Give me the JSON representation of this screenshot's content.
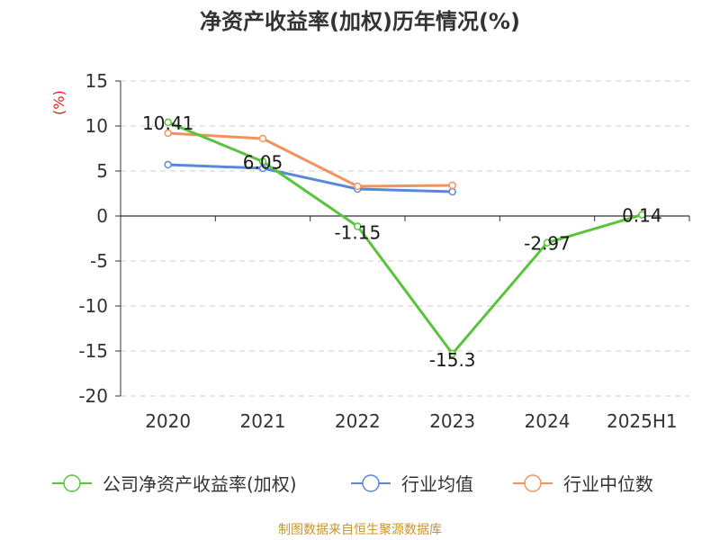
{
  "chart_data": {
    "type": "line",
    "title": "净资产收益率(加权)历年情况(%)",
    "ylabel": "(%)",
    "categories": [
      "2020",
      "2021",
      "2022",
      "2023",
      "2024",
      "2025H1"
    ],
    "ylim": [
      -20,
      15
    ],
    "yticks": [
      15,
      10,
      5,
      0,
      -5,
      -10,
      -15,
      -20
    ],
    "grid": true,
    "legend_position": "bottom",
    "series": [
      {
        "name": "公司净资产收益率(加权)",
        "color": "#5ac33c",
        "values": [
          10.41,
          6.05,
          -1.15,
          -15.3,
          -2.97,
          0.14
        ],
        "labels": [
          "10.41",
          "6.05",
          "-1.15",
          "-15.3",
          "-2.97",
          "0.14"
        ]
      },
      {
        "name": "行业均值",
        "color": "#5a87dc",
        "values": [
          5.7,
          5.3,
          3.0,
          2.7,
          null,
          null
        ]
      },
      {
        "name": "行业中位数",
        "color": "#f5915a",
        "values": [
          9.2,
          8.6,
          3.3,
          3.4,
          null,
          null
        ]
      }
    ]
  },
  "source": "制图数据来自恒生聚源数据库"
}
